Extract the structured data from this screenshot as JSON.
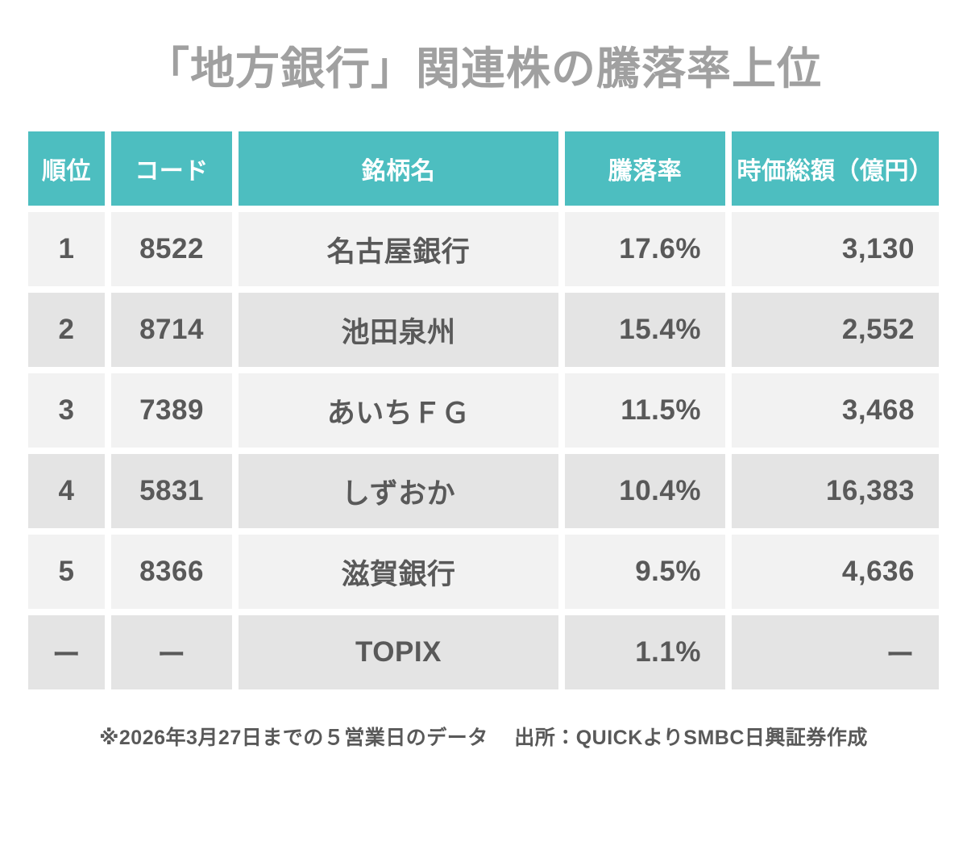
{
  "chart_data": {
    "type": "table",
    "title": "「地方銀行」関連株の騰落率上位",
    "columns": [
      "順位",
      "コード",
      "銘柄名",
      "騰落率",
      "時価総額（億円）"
    ],
    "rows": [
      [
        "1",
        "8522",
        "名古屋銀行",
        "17.6%",
        "3,130"
      ],
      [
        "2",
        "8714",
        "池田泉州",
        "15.4%",
        "2,552"
      ],
      [
        "3",
        "7389",
        "あいちＦＧ",
        "11.5%",
        "3,468"
      ],
      [
        "4",
        "5831",
        "しずおか",
        "10.4%",
        "16,383"
      ],
      [
        "5",
        "8366",
        "滋賀銀行",
        "9.5%",
        "4,636"
      ],
      [
        "ー",
        "ー",
        "TOPIX",
        "1.1%",
        "ー"
      ]
    ],
    "change_rate_pct": [
      17.6,
      15.4,
      11.5,
      10.4,
      9.5,
      1.1
    ],
    "market_cap_oku_yen": [
      3130,
      2552,
      3468,
      16383,
      4636,
      null
    ]
  },
  "footer": {
    "note": "※2026年3月27日までの５営業日のデータ",
    "source": "出所：QUICKよりSMBC日興証券作成"
  },
  "colors": {
    "header_bg": "#4dbec0",
    "header_text": "#ffffff",
    "row_light_bg": "#f2f2f2",
    "row_dark_bg": "#e4e4e4",
    "cell_text": "#595959",
    "title_text": "#a0a0a0"
  }
}
